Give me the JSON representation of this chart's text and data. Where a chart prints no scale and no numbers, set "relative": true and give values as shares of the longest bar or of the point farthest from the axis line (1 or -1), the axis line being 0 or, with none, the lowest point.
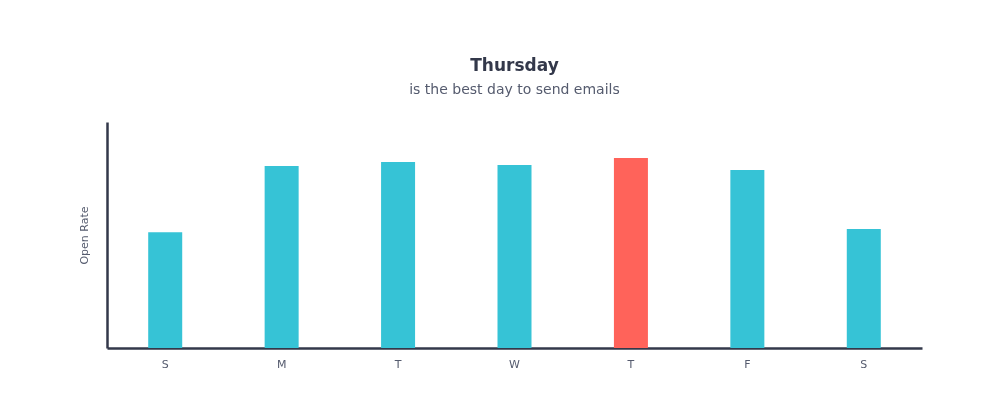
{
  "chart_data": {
    "type": "bar",
    "title": "Thursday",
    "subtitle": "is the best day to send emails",
    "ylabel": "Open Rate",
    "categories": [
      "S",
      "M",
      "T",
      "W",
      "T",
      "F",
      "S"
    ],
    "values": [
      0.61,
      0.958,
      0.979,
      0.963,
      1,
      0.937,
      0.626
    ],
    "colors": [
      "#36c3d6",
      "#36c3d6",
      "#36c3d6",
      "#36c3d6",
      "#ff635a",
      "#36c3d6",
      "#36c3d6"
    ],
    "relative": true,
    "grid": false
  }
}
